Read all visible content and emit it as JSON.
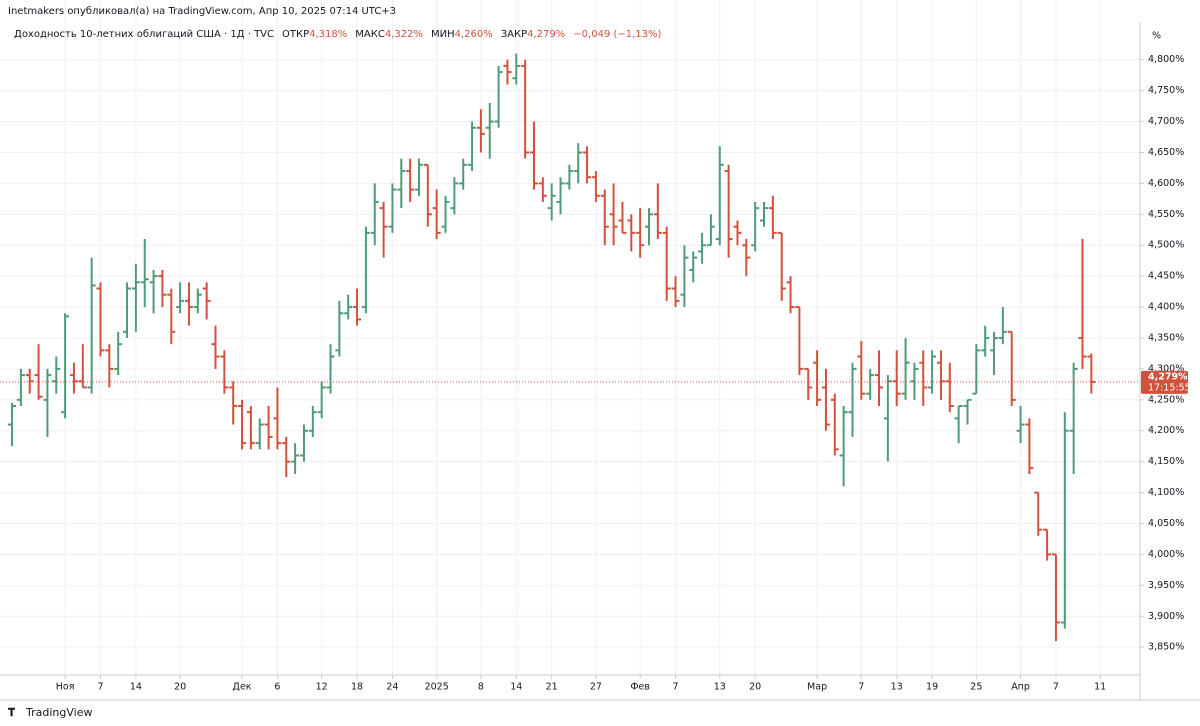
{
  "chart_data": {
    "type": "ohlc",
    "publisher_line": "Inetmakers опубликовал(а) на TradingView.com, Апр 10, 2025 07:14 UTC+3",
    "symbol": "Доходность 10-летних облигаций США · 1Д · TVC",
    "legend_fields": [
      {
        "label": "ОТКР",
        "value": "4,318%"
      },
      {
        "label": "МАКС",
        "value": "4,322%"
      },
      {
        "label": "МИН",
        "value": "4,260%"
      },
      {
        "label": "ЗАКР",
        "value": "4,279%"
      }
    ],
    "change": "−0,049 (−1,13%)",
    "axis_unit": "%",
    "last_price": {
      "value": 4.279,
      "label": "4,279%"
    },
    "countdown": "17:15:55",
    "brand": "TradingView",
    "up_color": "#4f9a78",
    "down_color": "#d2503c",
    "grid": true,
    "ylim": [
      3.805,
      4.861
    ],
    "xlim": [
      -1.36,
      127.5
    ],
    "yticks": [
      {
        "value": 3.85,
        "label": "3,850%"
      },
      {
        "value": 3.9,
        "label": "3,900%"
      },
      {
        "value": 3.95,
        "label": "3,950%"
      },
      {
        "value": 4.0,
        "label": "4,000%"
      },
      {
        "value": 4.05,
        "label": "4,050%"
      },
      {
        "value": 4.1,
        "label": "4,100%"
      },
      {
        "value": 4.15,
        "label": "4,150%"
      },
      {
        "value": 4.2,
        "label": "4,200%"
      },
      {
        "value": 4.25,
        "label": "4,250%"
      },
      {
        "value": 4.3,
        "label": "4,300%"
      },
      {
        "value": 4.35,
        "label": "4,350%"
      },
      {
        "value": 4.4,
        "label": "4,400%"
      },
      {
        "value": 4.45,
        "label": "4,450%"
      },
      {
        "value": 4.5,
        "label": "4,500%"
      },
      {
        "value": 4.55,
        "label": "4,550%"
      },
      {
        "value": 4.6,
        "label": "4,600%"
      },
      {
        "value": 4.65,
        "label": "4,650%"
      },
      {
        "value": 4.7,
        "label": "4,700%"
      },
      {
        "value": 4.75,
        "label": "4,750%"
      },
      {
        "value": 4.8,
        "label": "4,800%"
      }
    ],
    "xticks": [
      {
        "value": 6,
        "label": "Ноя"
      },
      {
        "value": 10,
        "label": "7"
      },
      {
        "value": 14,
        "label": "14"
      },
      {
        "value": 19,
        "label": "20"
      },
      {
        "value": 26,
        "label": "Дек"
      },
      {
        "value": 30,
        "label": "6"
      },
      {
        "value": 35,
        "label": "12"
      },
      {
        "value": 39,
        "label": "18"
      },
      {
        "value": 43,
        "label": "24"
      },
      {
        "value": 48,
        "label": "2025"
      },
      {
        "value": 53,
        "label": "8"
      },
      {
        "value": 57,
        "label": "14"
      },
      {
        "value": 61,
        "label": "21"
      },
      {
        "value": 66,
        "label": "27"
      },
      {
        "value": 71,
        "label": "Фев"
      },
      {
        "value": 75,
        "label": "7"
      },
      {
        "value": 80,
        "label": "13"
      },
      {
        "value": 84,
        "label": "20"
      },
      {
        "value": 91,
        "label": "Мар"
      },
      {
        "value": 96,
        "label": "7"
      },
      {
        "value": 100,
        "label": "13"
      },
      {
        "value": 104,
        "label": "19"
      },
      {
        "value": 109,
        "label": "25"
      },
      {
        "value": 114,
        "label": "Апр"
      },
      {
        "value": 118,
        "label": "7"
      },
      {
        "value": 123,
        "label": "11"
      }
    ],
    "ohlc": [
      [
        4.21,
        4.245,
        4.175,
        4.24
      ],
      [
        4.25,
        4.3,
        4.24,
        4.29
      ],
      [
        4.29,
        4.3,
        4.26,
        4.28
      ],
      [
        4.29,
        4.34,
        4.25,
        4.255
      ],
      [
        4.25,
        4.3,
        4.19,
        4.29
      ],
      [
        4.28,
        4.32,
        4.26,
        4.3
      ],
      [
        4.23,
        4.39,
        4.22,
        4.385
      ],
      [
        4.29,
        4.31,
        4.26,
        4.28
      ],
      [
        4.28,
        4.34,
        4.27,
        4.27
      ],
      [
        4.27,
        4.48,
        4.26,
        4.435
      ],
      [
        4.43,
        4.44,
        4.32,
        4.33
      ],
      [
        4.33,
        4.34,
        4.27,
        4.3
      ],
      [
        4.3,
        4.36,
        4.29,
        4.34
      ],
      [
        4.36,
        4.44,
        4.35,
        4.43
      ],
      [
        4.43,
        4.47,
        4.36,
        4.44
      ],
      [
        4.44,
        4.51,
        4.4,
        4.445
      ],
      [
        4.44,
        4.46,
        4.39,
        4.45
      ],
      [
        4.45,
        4.46,
        4.4,
        4.42
      ],
      [
        4.42,
        4.43,
        4.34,
        4.36
      ],
      [
        4.4,
        4.44,
        4.39,
        4.41
      ],
      [
        4.41,
        4.44,
        4.37,
        4.4
      ],
      [
        4.4,
        4.43,
        4.39,
        4.42
      ],
      [
        4.43,
        4.44,
        4.38,
        4.41
      ],
      [
        4.34,
        4.37,
        4.3,
        4.32
      ],
      [
        4.32,
        4.33,
        4.26,
        4.27
      ],
      [
        4.27,
        4.28,
        4.21,
        4.24
      ],
      [
        4.24,
        4.25,
        4.17,
        4.18
      ],
      [
        4.23,
        4.24,
        4.17,
        4.18
      ],
      [
        4.18,
        4.22,
        4.17,
        4.21
      ],
      [
        4.21,
        4.24,
        4.17,
        4.19
      ],
      [
        4.22,
        4.27,
        4.17,
        4.18
      ],
      [
        4.18,
        4.19,
        4.125,
        4.15
      ],
      [
        4.15,
        4.18,
        4.13,
        4.16
      ],
      [
        4.16,
        4.21,
        4.15,
        4.2
      ],
      [
        4.2,
        4.24,
        4.19,
        4.23
      ],
      [
        4.23,
        4.28,
        4.22,
        4.27
      ],
      [
        4.27,
        4.34,
        4.26,
        4.32
      ],
      [
        4.33,
        4.41,
        4.32,
        4.39
      ],
      [
        4.39,
        4.42,
        4.38,
        4.4
      ],
      [
        4.4,
        4.43,
        4.37,
        4.38
      ],
      [
        4.4,
        4.53,
        4.39,
        4.52
      ],
      [
        4.52,
        4.6,
        4.5,
        4.57
      ],
      [
        4.56,
        4.57,
        4.48,
        4.53
      ],
      [
        4.53,
        4.6,
        4.52,
        4.59
      ],
      [
        4.59,
        4.64,
        4.56,
        4.62
      ],
      [
        4.62,
        4.64,
        4.57,
        4.59
      ],
      [
        4.59,
        4.64,
        4.58,
        4.63
      ],
      [
        4.63,
        4.63,
        4.53,
        4.55
      ],
      [
        4.56,
        4.59,
        4.51,
        4.52
      ],
      [
        4.53,
        4.58,
        4.52,
        4.57
      ],
      [
        4.56,
        4.61,
        4.55,
        4.6
      ],
      [
        4.6,
        4.64,
        4.59,
        4.63
      ],
      [
        4.63,
        4.7,
        4.62,
        4.69
      ],
      [
        4.69,
        4.72,
        4.65,
        4.68
      ],
      [
        4.69,
        4.73,
        4.64,
        4.7
      ],
      [
        4.7,
        4.79,
        4.69,
        4.78
      ],
      [
        4.79,
        4.8,
        4.76,
        4.78
      ],
      [
        4.77,
        4.81,
        4.76,
        4.79
      ],
      [
        4.79,
        4.8,
        4.64,
        4.65
      ],
      [
        4.65,
        4.7,
        4.59,
        4.6
      ],
      [
        4.6,
        4.61,
        4.57,
        4.58
      ],
      [
        4.56,
        4.6,
        4.54,
        4.58
      ],
      [
        4.57,
        4.61,
        4.55,
        4.6
      ],
      [
        4.6,
        4.63,
        4.59,
        4.62
      ],
      [
        4.62,
        4.665,
        4.6,
        4.65
      ],
      [
        4.65,
        4.66,
        4.6,
        4.61
      ],
      [
        4.61,
        4.62,
        4.57,
        4.58
      ],
      [
        4.58,
        4.59,
        4.5,
        4.53
      ],
      [
        4.55,
        4.6,
        4.5,
        4.53
      ],
      [
        4.54,
        4.57,
        4.52,
        4.52
      ],
      [
        4.54,
        4.55,
        4.49,
        4.52
      ],
      [
        4.52,
        4.56,
        4.48,
        4.5
      ],
      [
        4.53,
        4.56,
        4.5,
        4.55
      ],
      [
        4.55,
        4.6,
        4.51,
        4.52
      ],
      [
        4.52,
        4.53,
        4.41,
        4.43
      ],
      [
        4.43,
        4.45,
        4.4,
        4.41
      ],
      [
        4.42,
        4.5,
        4.4,
        4.48
      ],
      [
        4.46,
        4.49,
        4.44,
        4.48
      ],
      [
        4.49,
        4.52,
        4.47,
        4.5
      ],
      [
        4.5,
        4.55,
        4.5,
        4.53
      ],
      [
        4.51,
        4.66,
        4.5,
        4.63
      ],
      [
        4.62,
        4.63,
        4.48,
        4.51
      ],
      [
        4.53,
        4.54,
        4.5,
        4.52
      ],
      [
        4.5,
        4.51,
        4.45,
        4.48
      ],
      [
        4.5,
        4.57,
        4.49,
        4.56
      ],
      [
        4.54,
        4.57,
        4.53,
        4.56
      ],
      [
        4.56,
        4.58,
        4.51,
        4.52
      ],
      [
        4.52,
        4.52,
        4.41,
        4.43
      ],
      [
        4.44,
        4.45,
        4.39,
        4.4
      ],
      [
        4.4,
        4.4,
        4.29,
        4.3
      ],
      [
        4.3,
        4.3,
        4.25,
        4.27
      ],
      [
        4.31,
        4.33,
        4.24,
        4.25
      ],
      [
        4.27,
        4.3,
        4.2,
        4.21
      ],
      [
        4.25,
        4.26,
        4.16,
        4.17
      ],
      [
        4.16,
        4.24,
        4.11,
        4.23
      ],
      [
        4.23,
        4.31,
        4.19,
        4.3
      ],
      [
        4.32,
        4.345,
        4.25,
        4.26
      ],
      [
        4.26,
        4.3,
        4.25,
        4.29
      ],
      [
        4.29,
        4.33,
        4.24,
        4.27
      ],
      [
        4.22,
        4.29,
        4.15,
        4.28
      ],
      [
        4.28,
        4.33,
        4.24,
        4.26
      ],
      [
        4.26,
        4.35,
        4.25,
        4.31
      ],
      [
        4.28,
        4.31,
        4.25,
        4.3
      ],
      [
        4.31,
        4.33,
        4.24,
        4.27
      ],
      [
        4.27,
        4.33,
        4.26,
        4.32
      ],
      [
        4.31,
        4.33,
        4.25,
        4.28
      ],
      [
        4.28,
        4.31,
        4.23,
        4.24
      ],
      [
        4.22,
        4.24,
        4.18,
        4.24
      ],
      [
        4.24,
        4.25,
        4.21,
        4.25
      ],
      [
        4.26,
        4.34,
        4.26,
        4.33
      ],
      [
        4.33,
        4.37,
        4.32,
        4.35
      ],
      [
        4.33,
        4.36,
        4.29,
        4.35
      ],
      [
        4.35,
        4.4,
        4.34,
        4.36
      ],
      [
        4.36,
        4.36,
        4.24,
        4.25
      ],
      [
        4.2,
        4.24,
        4.18,
        4.21
      ],
      [
        4.21,
        4.22,
        4.13,
        4.14
      ],
      [
        4.1,
        4.1,
        4.03,
        4.04
      ],
      [
        4.04,
        4.04,
        3.99,
        4.0
      ],
      [
        4.0,
        4.0,
        3.86,
        3.89
      ],
      [
        3.89,
        4.23,
        3.88,
        4.2
      ],
      [
        4.2,
        4.31,
        4.13,
        4.3
      ],
      [
        4.35,
        4.51,
        4.3,
        4.32
      ],
      [
        4.32,
        4.325,
        4.26,
        4.279
      ]
    ]
  }
}
